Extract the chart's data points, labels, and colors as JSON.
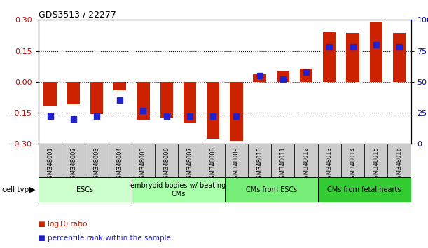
{
  "title": "GDS3513 / 22277",
  "categories": [
    "GSM348001",
    "GSM348002",
    "GSM348003",
    "GSM348004",
    "GSM348005",
    "GSM348006",
    "GSM348007",
    "GSM348008",
    "GSM348009",
    "GSM348010",
    "GSM348011",
    "GSM348012",
    "GSM348013",
    "GSM348014",
    "GSM348015",
    "GSM348016"
  ],
  "log10_ratio": [
    -0.12,
    -0.11,
    -0.155,
    -0.04,
    -0.185,
    -0.175,
    -0.2,
    -0.275,
    -0.285,
    0.035,
    0.055,
    0.065,
    0.24,
    0.235,
    0.29,
    0.235
  ],
  "percentile_rank": [
    22,
    20,
    22,
    35,
    27,
    22,
    22,
    22,
    22,
    55,
    52,
    58,
    78,
    78,
    80,
    78
  ],
  "ylim": [
    -0.3,
    0.3
  ],
  "yticks_left": [
    -0.3,
    -0.15,
    0.0,
    0.15,
    0.3
  ],
  "yticks_right": [
    0,
    25,
    50,
    75,
    100
  ],
  "hlines_dotted": [
    -0.15,
    0.15
  ],
  "bar_color": "#cc2200",
  "dot_color": "#2222cc",
  "bar_width": 0.55,
  "dot_size": 28,
  "cell_type_groups": [
    {
      "label": "ESCs",
      "start": 0,
      "end": 3,
      "color": "#ccffcc"
    },
    {
      "label": "embryoid bodies w/ beating\nCMs",
      "start": 4,
      "end": 7,
      "color": "#aaffaa"
    },
    {
      "label": "CMs from ESCs",
      "start": 8,
      "end": 11,
      "color": "#77ee77"
    },
    {
      "label": "CMs from fetal hearts",
      "start": 12,
      "end": 15,
      "color": "#33cc33"
    }
  ],
  "tick_label_color_left": "#cc0000",
  "tick_label_color_right": "#0000cc",
  "legend_items": [
    {
      "label": "log10 ratio",
      "color": "#cc2200"
    },
    {
      "label": "percentile rank within the sample",
      "color": "#2222cc"
    }
  ],
  "xtick_bg_color": "#cccccc"
}
